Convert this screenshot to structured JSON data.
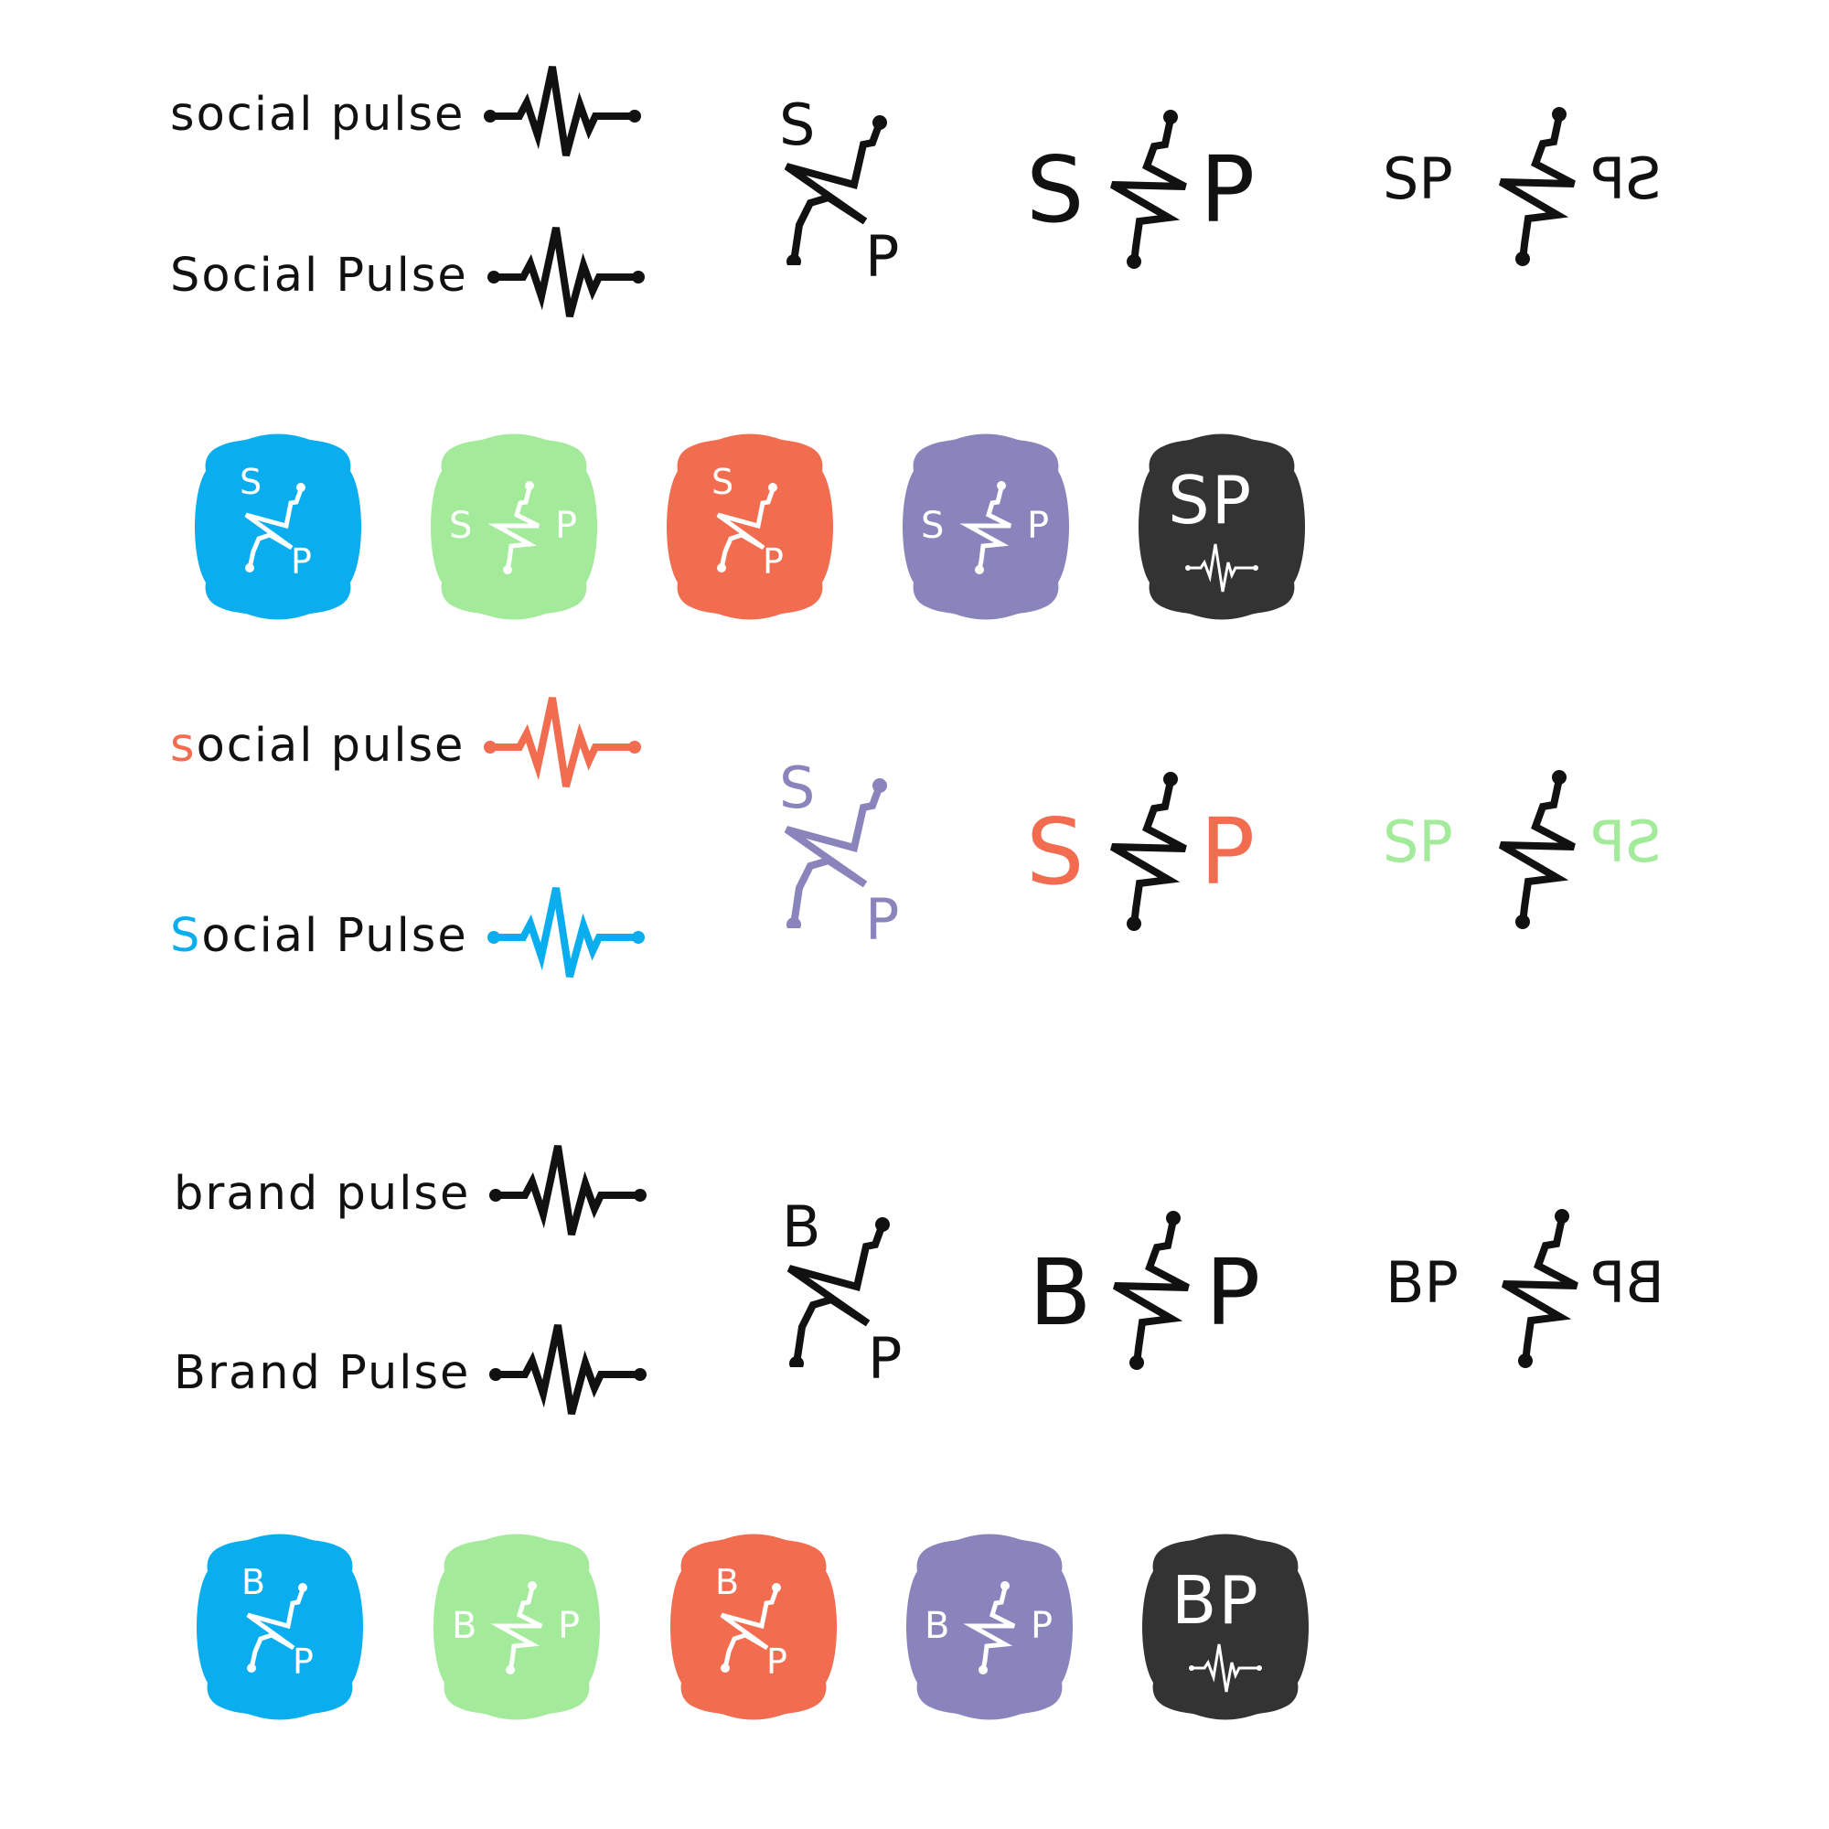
{
  "palette": {
    "blue": "#0aaeee",
    "green": "#a3ea9a",
    "coral": "#f26c50",
    "purple": "#8a84bc",
    "dark": "#333333",
    "ink": "#111111"
  },
  "icons": {
    "pulse": "pulse-line-icon",
    "zigzag": "zigzag-connector-icon"
  },
  "social": {
    "wordmark_lower": {
      "first": "s",
      "rest": "ocial pulse"
    },
    "wordmark_title": {
      "first": "S",
      "rest": "ocial Pulse"
    },
    "letters": {
      "a": "S",
      "b": "P"
    },
    "initials": "SP",
    "initials_mirrored": "SP"
  },
  "brand": {
    "wordmark_lower": {
      "first": "b",
      "rest": "rand pulse"
    },
    "wordmark_title": {
      "first": "B",
      "rest": "rand Pulse"
    },
    "letters": {
      "a": "B",
      "b": "P"
    },
    "initials": "BP",
    "initials_mirrored": "BP"
  }
}
